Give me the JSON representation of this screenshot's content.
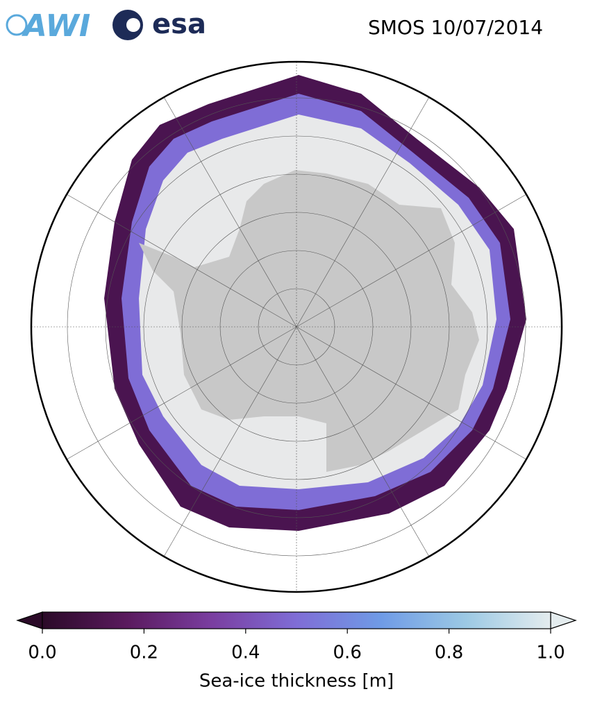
{
  "header": {
    "logos": [
      "AWI",
      "esa"
    ],
    "title": "SMOS 10/07/2014"
  },
  "colorbar": {
    "label": "Sea-ice thickness [m]",
    "xlim": [
      0,
      1
    ],
    "xticks": [
      {
        "value": 0,
        "label": "0.0"
      },
      0.2,
      0.4,
      0.6,
      0.8,
      {
        "value": 1,
        "label": "1.0"
      }
    ],
    "colors": [
      "#2b0a28",
      "#5a1a5e",
      "#7a3ea0",
      "#7f6dd6",
      "#6f9be6",
      "#9cc9e4",
      "#e4ecee"
    ]
  }
}
